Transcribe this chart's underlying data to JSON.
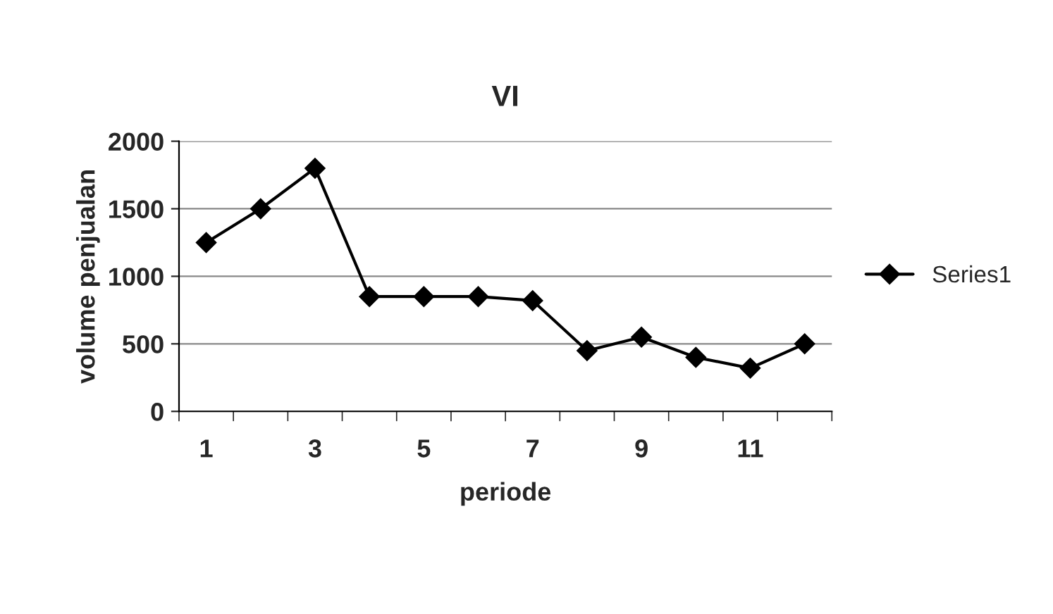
{
  "chart_data": {
    "type": "line",
    "title": "VI",
    "xlabel": "periode",
    "ylabel": "volume penjualan",
    "categories": [
      "1",
      null,
      "3",
      null,
      "5",
      null,
      "7",
      null,
      "9",
      null,
      "11",
      null
    ],
    "series": [
      {
        "name": "Series1",
        "color": "#000000",
        "values": [
          1250,
          1500,
          1800,
          850,
          850,
          850,
          820,
          450,
          550,
          400,
          320,
          500
        ]
      }
    ],
    "ylim": [
      0,
      2000
    ],
    "yticks": [
      0,
      500,
      1000,
      1500,
      2000
    ],
    "grid": "y",
    "legend": "right",
    "marker": "diamond",
    "line_style": "solid"
  }
}
